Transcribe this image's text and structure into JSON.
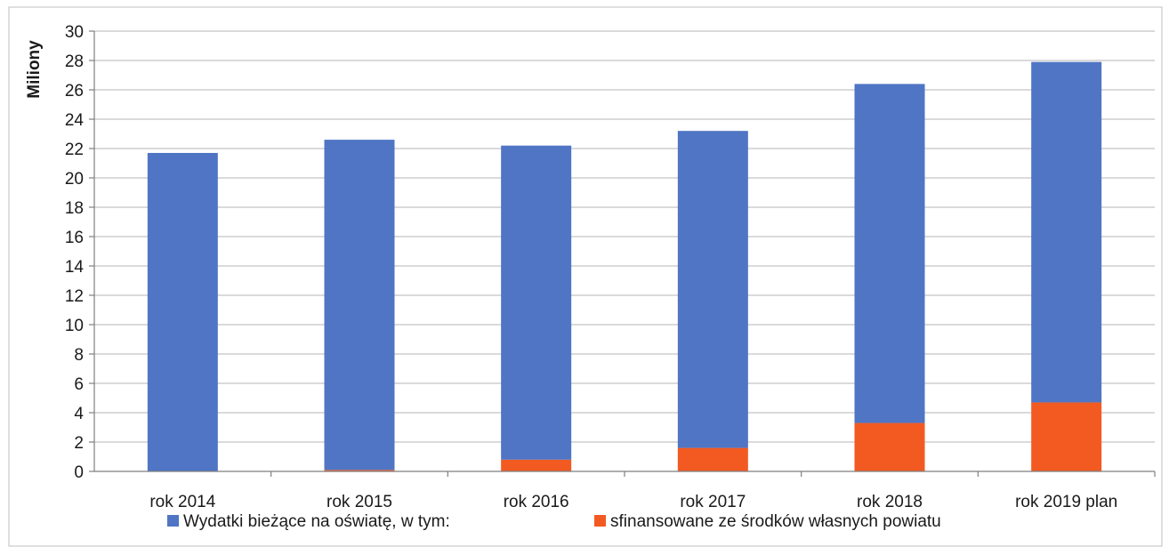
{
  "chart_data": {
    "type": "bar",
    "stacked": true,
    "categories": [
      "rok 2014",
      "rok 2015",
      "rok 2016",
      "rok 2017",
      "rok 2018",
      "rok 2019 plan"
    ],
    "series": [
      {
        "name": "Wydatki bieżące na oświatę, w tym:",
        "color": "#4F75C4",
        "values": [
          21.7,
          22.5,
          21.4,
          21.6,
          23.1,
          23.2
        ]
      },
      {
        "name": "sfinansowane ze środków własnych powiatu",
        "color": "#F25A22",
        "values": [
          0.0,
          0.1,
          0.8,
          1.6,
          3.3,
          4.7
        ]
      }
    ],
    "totals": [
      21.7,
      22.6,
      22.2,
      23.2,
      26.4,
      27.9
    ],
    "xlabel": "",
    "ylabel": "Miliony",
    "ylim": [
      0,
      30
    ],
    "yticks": [
      0,
      2,
      4,
      6,
      8,
      10,
      12,
      14,
      16,
      18,
      20,
      22,
      24,
      26,
      28,
      30
    ],
    "grid": true,
    "legend_position": "bottom"
  }
}
